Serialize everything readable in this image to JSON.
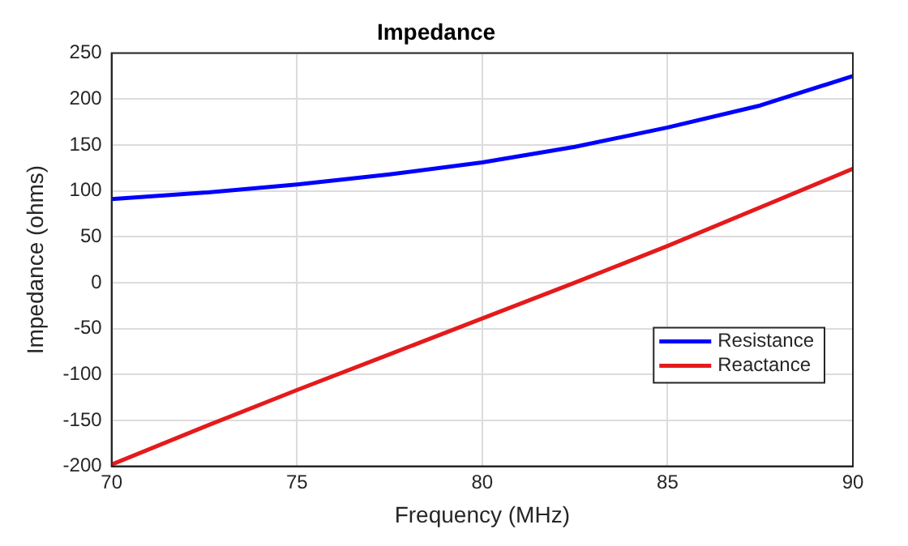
{
  "chart_data": {
    "type": "line",
    "title": "Impedance",
    "xlabel": "Frequency (MHz)",
    "ylabel": "Impedance (ohms)",
    "x": [
      70,
      72.5,
      75,
      77.5,
      80,
      82.5,
      85,
      87.5,
      90
    ],
    "series": [
      {
        "name": "Resistance",
        "color": "#0000ff",
        "values": [
          91,
          98,
          107,
          118,
          131,
          148,
          169,
          193,
          225
        ]
      },
      {
        "name": "Reactance",
        "color": "#e41a1c",
        "values": [
          -198,
          -157,
          -117,
          -78,
          -39,
          0,
          40,
          82,
          124
        ]
      }
    ],
    "xlim": [
      70,
      90
    ],
    "xticks": [
      70,
      75,
      80,
      85,
      90
    ],
    "ylim": [
      -200,
      250
    ],
    "yticks": [
      -200,
      -150,
      -100,
      -50,
      0,
      50,
      100,
      150,
      200,
      250
    ],
    "grid": true,
    "legend": "bottom right",
    "marker": "none",
    "line_style": "solid"
  }
}
